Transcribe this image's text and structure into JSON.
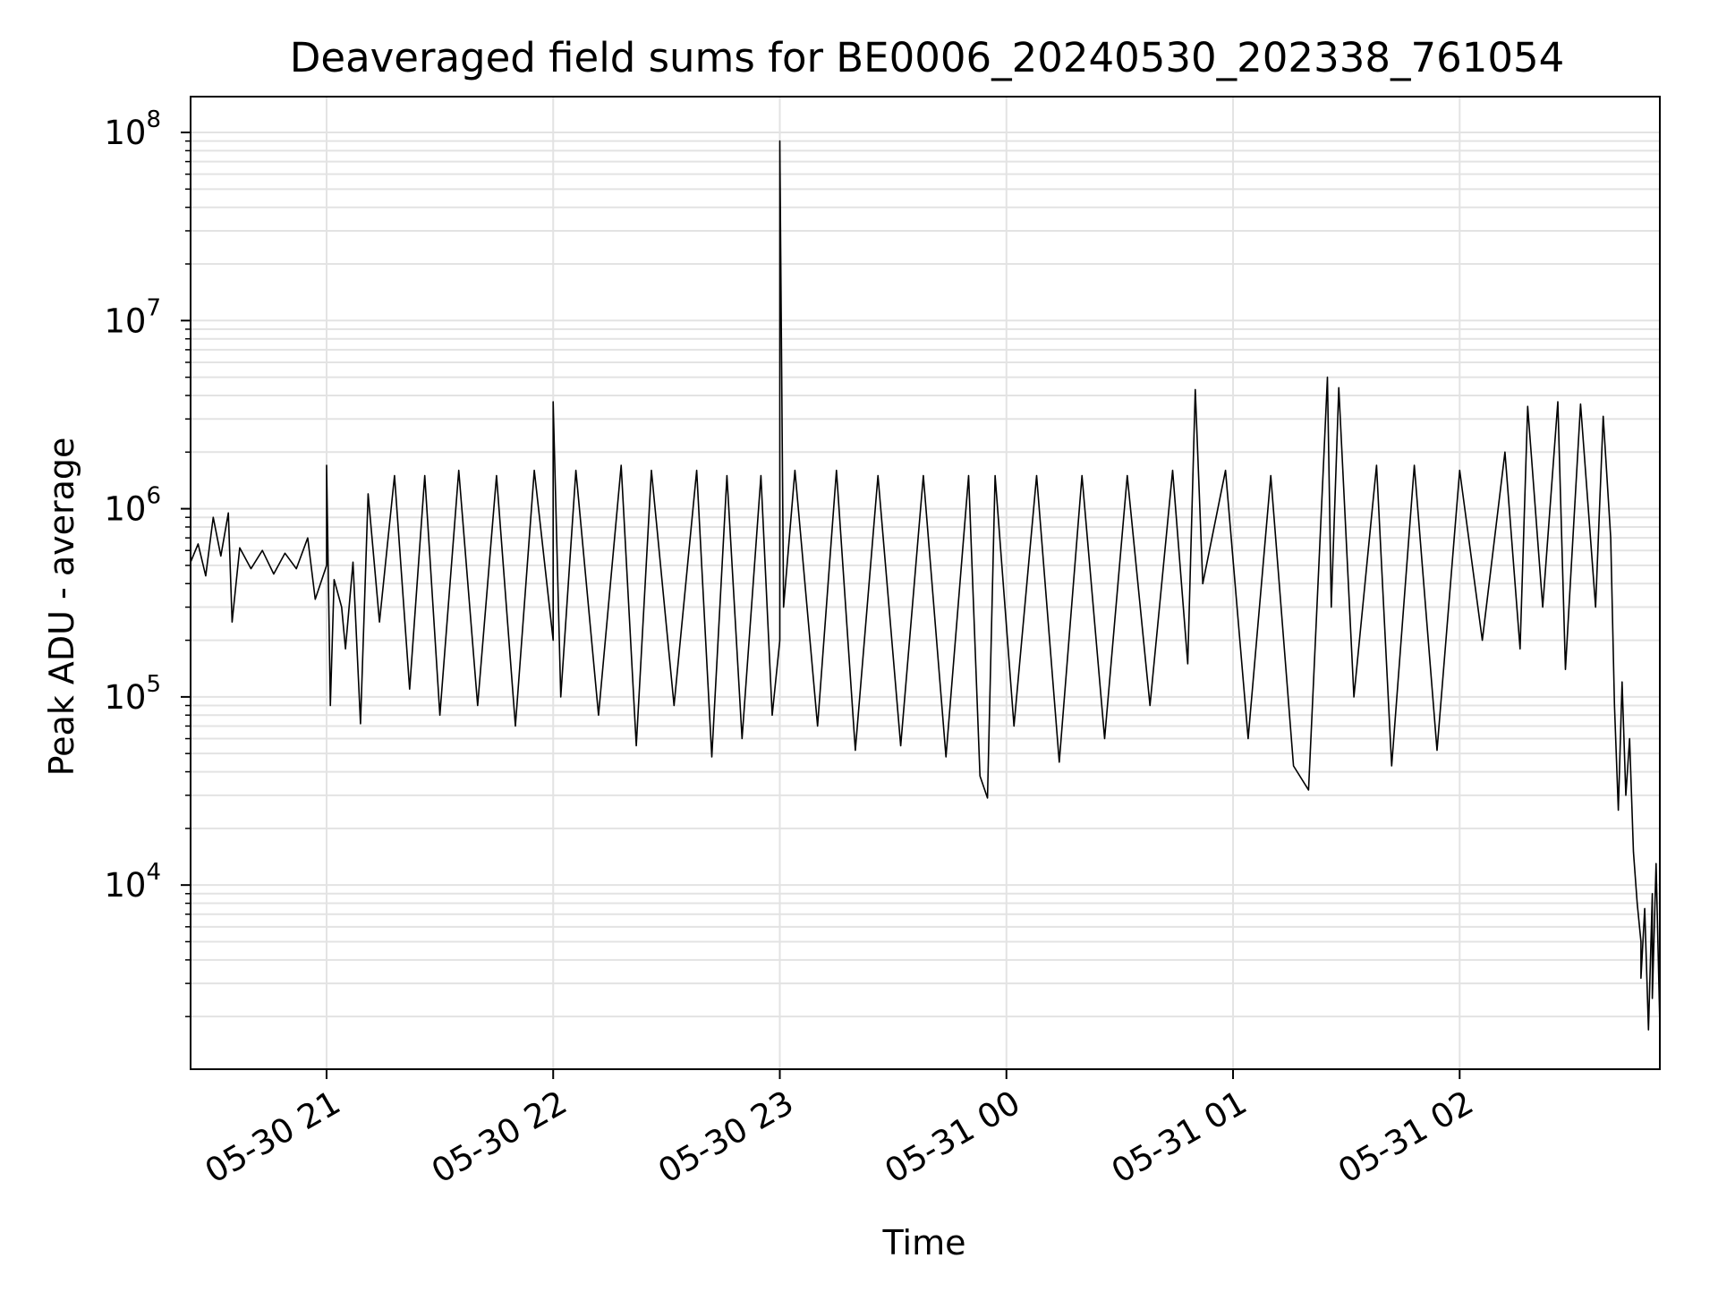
{
  "chart_data": {
    "type": "line",
    "title": "Deaveraged field sums for BE0006_20240530_202338_761054",
    "xlabel": "Time",
    "ylabel": "Peak ADU - average",
    "yscale": "log",
    "ylim": [
      1050,
      155000000
    ],
    "xlim": [
      "2024-05-30 20:24",
      "2024-05-31 02:53"
    ],
    "x_ticks": [
      "05-30 21",
      "05-30 22",
      "05-30 23",
      "05-31 00",
      "05-31 01",
      "05-31 02"
    ],
    "y_ticks": [
      {
        "base": "10",
        "exp": "4",
        "value": 10000
      },
      {
        "base": "10",
        "exp": "5",
        "value": 100000
      },
      {
        "base": "10",
        "exp": "6",
        "value": 1000000
      },
      {
        "base": "10",
        "exp": "7",
        "value": 10000000
      },
      {
        "base": "10",
        "exp": "8",
        "value": 100000000
      }
    ],
    "grid": true,
    "line_color": "#000000",
    "grid_color": "#e3e3e3",
    "series": [
      {
        "points": [
          [
            "2024-05-30 20:24",
            520000
          ],
          [
            "2024-05-30 20:26",
            650000
          ],
          [
            "2024-05-30 20:28",
            440000
          ],
          [
            "2024-05-30 20:30",
            900000
          ],
          [
            "2024-05-30 20:32",
            560000
          ],
          [
            "2024-05-30 20:34",
            950000
          ],
          [
            "2024-05-30 20:35",
            250000
          ],
          [
            "2024-05-30 20:37",
            620000
          ],
          [
            "2024-05-30 20:40",
            480000
          ],
          [
            "2024-05-30 20:43",
            600000
          ],
          [
            "2024-05-30 20:46",
            450000
          ],
          [
            "2024-05-30 20:49",
            580000
          ],
          [
            "2024-05-30 20:52",
            480000
          ],
          [
            "2024-05-30 20:55",
            700000
          ],
          [
            "2024-05-30 20:57",
            330000
          ],
          [
            "2024-05-30 21:00",
            500000
          ],
          [
            "2024-05-30 21:00",
            1700000
          ],
          [
            "2024-05-30 21:01",
            90000
          ],
          [
            "2024-05-30 21:02",
            420000
          ],
          [
            "2024-05-30 21:04",
            300000
          ],
          [
            "2024-05-30 21:05",
            180000
          ],
          [
            "2024-05-30 21:07",
            520000
          ],
          [
            "2024-05-30 21:09",
            72000
          ],
          [
            "2024-05-30 21:11",
            1200000
          ],
          [
            "2024-05-30 21:14",
            250000
          ],
          [
            "2024-05-30 21:18",
            1500000
          ],
          [
            "2024-05-30 21:22",
            110000
          ],
          [
            "2024-05-30 21:26",
            1500000
          ],
          [
            "2024-05-30 21:30",
            80000
          ],
          [
            "2024-05-30 21:35",
            1600000
          ],
          [
            "2024-05-30 21:40",
            90000
          ],
          [
            "2024-05-30 21:45",
            1500000
          ],
          [
            "2024-05-30 21:50",
            70000
          ],
          [
            "2024-05-30 21:55",
            1600000
          ],
          [
            "2024-05-30 22:00",
            200000
          ],
          [
            "2024-05-30 22:00",
            3700000
          ],
          [
            "2024-05-30 22:02",
            100000
          ],
          [
            "2024-05-30 22:06",
            1600000
          ],
          [
            "2024-05-30 22:12",
            80000
          ],
          [
            "2024-05-30 22:18",
            1700000
          ],
          [
            "2024-05-30 22:22",
            55000
          ],
          [
            "2024-05-30 22:26",
            1600000
          ],
          [
            "2024-05-30 22:32",
            90000
          ],
          [
            "2024-05-30 22:38",
            1600000
          ],
          [
            "2024-05-30 22:42",
            48000
          ],
          [
            "2024-05-30 22:46",
            1500000
          ],
          [
            "2024-05-30 22:50",
            60000
          ],
          [
            "2024-05-30 22:55",
            1500000
          ],
          [
            "2024-05-30 22:58",
            80000
          ],
          [
            "2024-05-30 23:00",
            200000
          ],
          [
            "2024-05-30 23:00",
            90000000
          ],
          [
            "2024-05-30 23:01",
            300000
          ],
          [
            "2024-05-30 23:04",
            1600000
          ],
          [
            "2024-05-30 23:10",
            70000
          ],
          [
            "2024-05-30 23:15",
            1600000
          ],
          [
            "2024-05-30 23:20",
            52000
          ],
          [
            "2024-05-30 23:26",
            1500000
          ],
          [
            "2024-05-30 23:32",
            55000
          ],
          [
            "2024-05-30 23:38",
            1500000
          ],
          [
            "2024-05-30 23:44",
            48000
          ],
          [
            "2024-05-30 23:50",
            1500000
          ],
          [
            "2024-05-30 23:53",
            38000
          ],
          [
            "2024-05-30 23:55",
            29000
          ],
          [
            "2024-05-30 23:57",
            1500000
          ],
          [
            "2024-05-31 00:02",
            70000
          ],
          [
            "2024-05-31 00:08",
            1500000
          ],
          [
            "2024-05-31 00:14",
            45000
          ],
          [
            "2024-05-31 00:20",
            1500000
          ],
          [
            "2024-05-31 00:26",
            60000
          ],
          [
            "2024-05-31 00:32",
            1500000
          ],
          [
            "2024-05-31 00:38",
            90000
          ],
          [
            "2024-05-31 00:44",
            1600000
          ],
          [
            "2024-05-31 00:48",
            150000
          ],
          [
            "2024-05-31 00:50",
            4300000
          ],
          [
            "2024-05-31 00:52",
            400000
          ],
          [
            "2024-05-31 00:58",
            1600000
          ],
          [
            "2024-05-31 01:04",
            60000
          ],
          [
            "2024-05-31 01:10",
            1500000
          ],
          [
            "2024-05-31 01:16",
            43000
          ],
          [
            "2024-05-31 01:20",
            32000
          ],
          [
            "2024-05-31 01:24",
            1800000
          ],
          [
            "2024-05-31 01:25",
            5000000
          ],
          [
            "2024-05-31 01:26",
            300000
          ],
          [
            "2024-05-31 01:28",
            4400000
          ],
          [
            "2024-05-31 01:32",
            100000
          ],
          [
            "2024-05-31 01:38",
            1700000
          ],
          [
            "2024-05-31 01:42",
            43000
          ],
          [
            "2024-05-31 01:48",
            1700000
          ],
          [
            "2024-05-31 01:54",
            52000
          ],
          [
            "2024-05-31 02:00",
            1600000
          ],
          [
            "2024-05-31 02:06",
            200000
          ],
          [
            "2024-05-31 02:12",
            2000000
          ],
          [
            "2024-05-31 02:16",
            180000
          ],
          [
            "2024-05-31 02:18",
            3500000
          ],
          [
            "2024-05-31 02:22",
            300000
          ],
          [
            "2024-05-31 02:26",
            3700000
          ],
          [
            "2024-05-31 02:28",
            140000
          ],
          [
            "2024-05-31 02:32",
            3600000
          ],
          [
            "2024-05-31 02:36",
            300000
          ],
          [
            "2024-05-31 02:38",
            3100000
          ],
          [
            "2024-05-31 02:40",
            700000
          ],
          [
            "2024-05-31 02:41",
            90000
          ],
          [
            "2024-05-31 02:42",
            25000
          ],
          [
            "2024-05-31 02:43",
            120000
          ],
          [
            "2024-05-31 02:44",
            30000
          ],
          [
            "2024-05-31 02:45",
            60000
          ],
          [
            "2024-05-31 02:46",
            15000
          ],
          [
            "2024-05-31 02:47",
            8000
          ],
          [
            "2024-05-31 02:48",
            5000
          ],
          [
            "2024-05-31 02:48",
            3200
          ],
          [
            "2024-05-31 02:49",
            7500
          ],
          [
            "2024-05-31 02:50",
            1700
          ],
          [
            "2024-05-31 02:51",
            9000
          ],
          [
            "2024-05-31 02:51",
            2500
          ],
          [
            "2024-05-31 02:52",
            13000
          ],
          [
            "2024-05-31 02:53",
            1800
          ]
        ]
      }
    ]
  }
}
